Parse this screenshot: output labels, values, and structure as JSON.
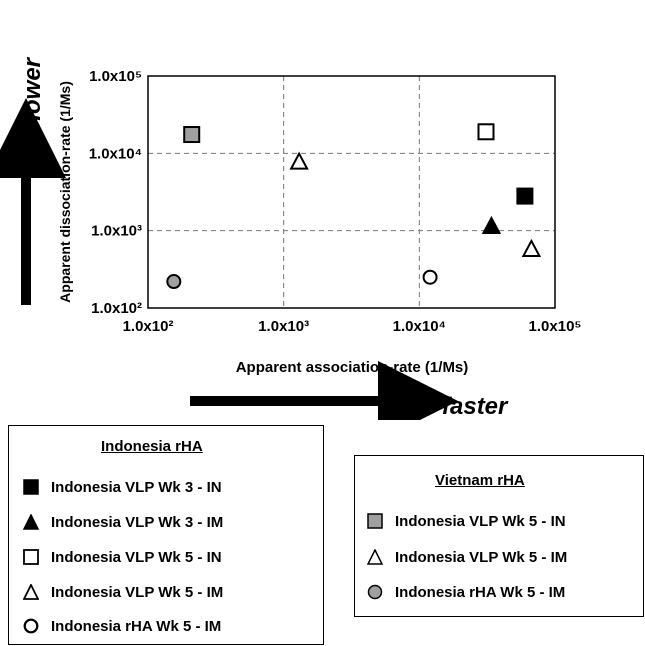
{
  "chart_data": {
    "type": "scatter",
    "title": "",
    "xlabel": "Apparent association-rate  (1/Ms)",
    "ylabel": "Apparent dissociation-rate  (1/Ms)",
    "x_scale": "log",
    "y_scale": "log",
    "xlim": [
      100,
      100000
    ],
    "ylim": [
      100,
      100000
    ],
    "grid": true,
    "x_ticks": [
      100,
      1000,
      10000,
      100000
    ],
    "y_ticks": [
      100,
      1000,
      10000,
      100000
    ],
    "x_tick_labels": [
      "1.0x10²",
      "1.0x10³",
      "1.0x10⁴",
      "1.0x10⁵"
    ],
    "y_tick_labels": [
      "1.0x10²",
      "1.0x10³",
      "1.0x10⁴",
      "1.0x10⁵"
    ],
    "series": [
      {
        "name": "Indonesia VLP Wk 3 - IN",
        "group": "Indonesia rHA",
        "marker": "square",
        "fill": "#000000",
        "points": [
          {
            "x": 60000,
            "y": 2800
          }
        ]
      },
      {
        "name": "Indonesia VLP Wk 3 - IM",
        "group": "Indonesia rHA",
        "marker": "triangle",
        "fill": "#000000",
        "points": [
          {
            "x": 34000,
            "y": 1150
          }
        ]
      },
      {
        "name": "Indonesia VLP Wk 5 - IN",
        "group": "Indonesia rHA",
        "marker": "square",
        "fill": "#ffffff",
        "points": [
          {
            "x": 31000,
            "y": 19000
          }
        ]
      },
      {
        "name": "Indonesia VLP Wk 5 - IM",
        "group": "Indonesia rHA",
        "marker": "triangle",
        "fill": "#ffffff",
        "points": [
          {
            "x": 67000,
            "y": 580
          }
        ]
      },
      {
        "name": "Indonesia rHA Wk 5 - IM",
        "group": "Indonesia rHA",
        "marker": "circle",
        "fill": "#ffffff",
        "points": [
          {
            "x": 12000,
            "y": 250
          }
        ]
      },
      {
        "name": "Indonesia VLP Wk 5 - IN",
        "group": "Vietnam rHA",
        "marker": "square",
        "fill": "#a0a0a0",
        "points": [
          {
            "x": 210,
            "y": 17500
          }
        ]
      },
      {
        "name": "Indonesia VLP Wk 5 - IM",
        "group": "Vietnam rHA",
        "marker": "triangle",
        "fill": "#ffffff",
        "points": [
          {
            "x": 1300,
            "y": 7800
          }
        ]
      },
      {
        "name": "Indonesia rHA Wk 5 - IM",
        "group": "Vietnam rHA",
        "marker": "circle",
        "fill": "#a0a0a0",
        "points": [
          {
            "x": 155,
            "y": 220
          }
        ]
      }
    ],
    "annotations": {
      "left_arrow": "slower",
      "bottom_arrow": "faster"
    }
  },
  "legend_indonesia": {
    "title": "Indonesia rHA",
    "items": [
      {
        "label": "Indonesia VLP Wk 3 - IN",
        "marker": "square",
        "fill": "#000000"
      },
      {
        "label": "Indonesia VLP Wk 3 - IM",
        "marker": "triangle",
        "fill": "#000000"
      },
      {
        "label": "Indonesia VLP Wk 5 - IN",
        "marker": "square",
        "fill": "#ffffff"
      },
      {
        "label": "Indonesia VLP Wk 5 - IM",
        "marker": "triangle",
        "fill": "#ffffff"
      },
      {
        "label": "Indonesia rHA Wk 5 - IM",
        "marker": "circle",
        "fill": "#ffffff"
      }
    ]
  },
  "legend_vietnam": {
    "title": "Vietnam rHA",
    "items": [
      {
        "label": "Indonesia VLP Wk 5 - IN",
        "marker": "square",
        "fill": "#a0a0a0"
      },
      {
        "label": "Indonesia VLP Wk 5 - IM",
        "marker": "triangle",
        "fill": "#ffffff"
      },
      {
        "label": "Indonesia rHA Wk 5 - IM",
        "marker": "circle",
        "fill": "#a0a0a0"
      }
    ]
  }
}
